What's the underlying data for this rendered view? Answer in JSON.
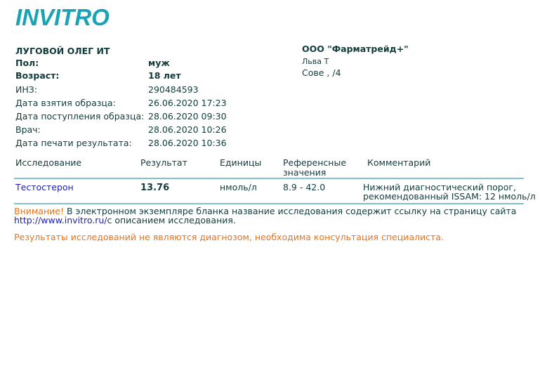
{
  "logo": "INVITRO",
  "patient": {
    "name": "ЛУГОВОЙ ОЛЕГ   ИТ",
    "sex_label": "Пол:",
    "sex_value": "муж",
    "age_label": "Возраст:",
    "age_value": "18 лет",
    "fields": [
      {
        "label": "ИНЗ:",
        "value": "290484593"
      },
      {
        "label": "Дата взятия образца:",
        "value": "26.06.2020 17:23"
      },
      {
        "label": "Дата поступления образца:",
        "value": "28.06.2020 09:30"
      },
      {
        "label": "Врач:",
        "value": "28.06.2020 10:26"
      },
      {
        "label": "Дата печати результата:",
        "value": "28.06.2020 10:36"
      }
    ]
  },
  "lab": {
    "name": "ООО \"Фарматрейд+\"",
    "address1": "              Льва Т",
    "address2": "Сове         ,  /4"
  },
  "table": {
    "headers": [
      "Исследование",
      "Результат",
      "Единицы",
      "Референсные значения",
      "Комментарий"
    ],
    "rows": [
      {
        "test": "Тестостерон",
        "result": "13.76",
        "units": "нмоль/л",
        "reference": "8.9 - 42.0",
        "comment1": "Нижний диагностический порог,",
        "comment2": "рекомендованный ISSAM: 12 нмоль/л"
      }
    ]
  },
  "notice": {
    "warn": "Внимание!",
    "text": " В электронном экземпляре бланка название исследования содержит ссылку на страницу сайта",
    "link": "http://www.invitro.ru/",
    "text2": "с описанием исследования."
  },
  "disclaimer": "Результаты исследований не являются диагнозом, необходима консультация специалиста."
}
